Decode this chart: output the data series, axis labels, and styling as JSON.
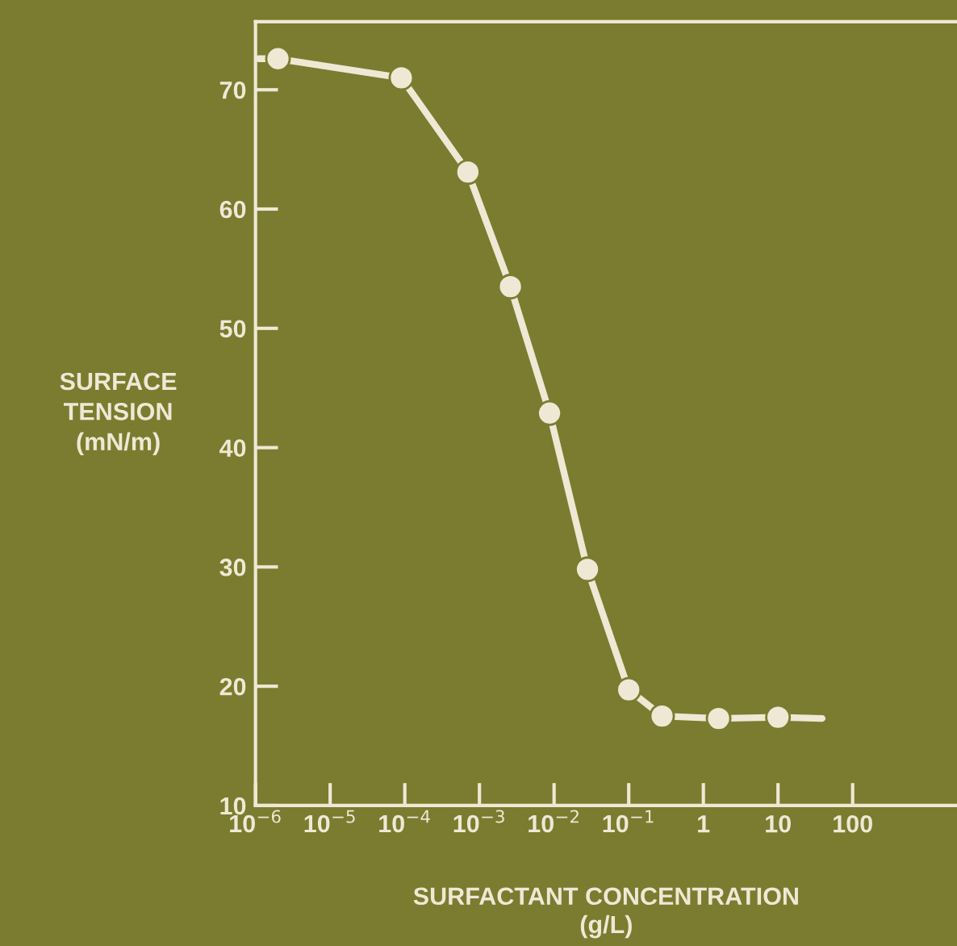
{
  "chart_data": {
    "type": "scatter",
    "xlabel": "SURFACTANT CONCENTRATION\n(g/L)",
    "ylabel": "SURFACE\nTENSION\n(mN/m)",
    "log": "x",
    "xlim": [
      1e-06,
      2500
    ],
    "ylim": [
      10,
      75.7
    ],
    "xticks": [
      {
        "value": 1e-06,
        "label": "10$^{−6}$"
      },
      {
        "value": 1e-05,
        "label": "10$^{−5}$"
      },
      {
        "value": 0.0001,
        "label": "10$^{−4}$"
      },
      {
        "value": 0.001,
        "label": "10$^{−3}$"
      },
      {
        "value": 0.01,
        "label": "10$^{−2}$"
      },
      {
        "value": 0.1,
        "label": "10$^{−1}$"
      },
      1,
      10,
      100
    ],
    "yticks": [
      10,
      20,
      30,
      40,
      50,
      60,
      70
    ],
    "grid": false,
    "legend": false,
    "series": [
      {
        "type": "line",
        "color": "#eee8d4",
        "line_style": "solid",
        "marker": "none",
        "x": [
          1.1e-06,
          2e-06,
          9e-05,
          0.0007,
          0.0026,
          0.0087,
          0.028,
          0.1,
          0.28,
          1.6,
          10,
          39
        ],
        "values": [
          72.6,
          72.6,
          71.0,
          63.1,
          53.5,
          42.9,
          29.8,
          19.7,
          17.5,
          17.3,
          17.4,
          17.3
        ]
      },
      {
        "color": "#eee8d4",
        "marker": "circle",
        "x": [
          2e-06,
          9e-05,
          0.0007,
          0.0026,
          0.0087,
          0.028,
          0.1,
          0.28,
          1.6,
          10
        ],
        "values": [
          72.6,
          71.0,
          63.1,
          53.5,
          42.9,
          29.8,
          19.7,
          17.5,
          17.3,
          17.4
        ]
      }
    ]
  }
}
